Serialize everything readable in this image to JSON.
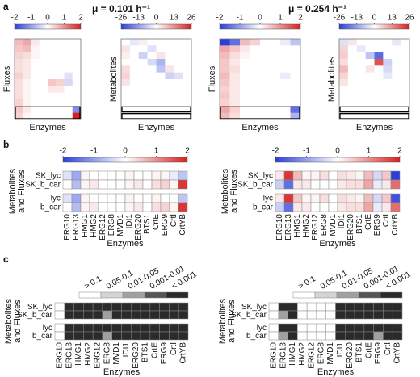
{
  "panel_labels": [
    "a",
    "b",
    "c"
  ],
  "titles": [
    "μ = 0.101 h⁻¹",
    "μ = 0.254 h⁻¹"
  ],
  "chart_data": [
    {
      "type": "heatmap",
      "ylabel": "Fluxes",
      "xlabel": "Enzymes",
      "clim": [
        -2,
        2
      ],
      "cticks": [
        -2,
        -1,
        0,
        1,
        2
      ],
      "cmap": [
        "#2b3fd8",
        "#ffffff",
        "#d62020"
      ],
      "values": [
        [
          0.6,
          0.8,
          0.2,
          0,
          0,
          0,
          0,
          0
        ],
        [
          0.5,
          0.6,
          0.1,
          0,
          0,
          0,
          0,
          0
        ],
        [
          0.4,
          0.3,
          0.1,
          0,
          0,
          0,
          0,
          0
        ],
        [
          0.3,
          0.2,
          0,
          0,
          0,
          0,
          0,
          0
        ],
        [
          0.3,
          0.2,
          0,
          0,
          0,
          0,
          0,
          0
        ],
        [
          0.4,
          0.2,
          0,
          0,
          0,
          0,
          -0.3,
          0
        ],
        [
          0.3,
          0.1,
          0,
          0,
          0.5,
          0.4,
          -0.4,
          0
        ],
        [
          0.3,
          0.1,
          0,
          0,
          0.2,
          0.2,
          0,
          0
        ],
        [
          0.3,
          0.1,
          0,
          0,
          0,
          0,
          0,
          0
        ],
        [
          0.4,
          0.1,
          0,
          0,
          0,
          0,
          0,
          0
        ],
        [
          0.5,
          0.2,
          0,
          0,
          0,
          0,
          0,
          -1.2
        ],
        [
          0.4,
          0.1,
          0,
          0,
          0,
          0,
          0,
          2
        ]
      ]
    },
    {
      "type": "heatmap",
      "ylabel": "Metabolites",
      "xlabel": "Enzymes",
      "clim": [
        -26,
        26
      ],
      "cticks": [
        -26,
        -13,
        0,
        13,
        26
      ],
      "cmap": [
        "#2b3fd8",
        "#ffffff",
        "#d62020"
      ],
      "values": [
        [
          0,
          -3,
          2,
          0,
          0,
          0,
          0,
          0
        ],
        [
          3,
          0,
          0,
          -4,
          0,
          0,
          0,
          0
        ],
        [
          2,
          0,
          -6,
          0,
          3,
          0,
          0,
          0
        ],
        [
          0,
          0,
          0,
          -5,
          -10,
          0,
          0,
          0
        ],
        [
          4,
          0,
          0,
          0,
          -8,
          3,
          0,
          0
        ],
        [
          5,
          0,
          0,
          0,
          0,
          -6,
          -4,
          0
        ],
        [
          3,
          0,
          0,
          0,
          0,
          0,
          0,
          0
        ],
        [
          0,
          0,
          0,
          0,
          0,
          0,
          0,
          0
        ],
        [
          0,
          0,
          0,
          0,
          0,
          0,
          0,
          0
        ],
        [
          0,
          0,
          0,
          0,
          0,
          0,
          0,
          0
        ],
        [
          0,
          0,
          0,
          0,
          0,
          0,
          0,
          0
        ],
        [
          0,
          0,
          0,
          0,
          0,
          0,
          0,
          0
        ]
      ]
    },
    {
      "type": "heatmap",
      "ylabel": "Fluxes",
      "xlabel": "Enzymes",
      "clim": [
        -2,
        2
      ],
      "cticks": [
        -2,
        -1,
        0,
        1,
        2
      ],
      "cmap": [
        "#2b3fd8",
        "#ffffff",
        "#d62020"
      ],
      "values": [
        [
          -2,
          -1.5,
          0.6,
          0.4,
          0,
          0,
          -0.2,
          -0.6
        ],
        [
          0.8,
          0.5,
          0.2,
          0,
          0,
          0,
          0,
          0
        ],
        [
          0.6,
          0.3,
          0.1,
          0,
          0,
          0,
          0,
          0
        ],
        [
          0.5,
          0.2,
          0,
          0,
          0,
          0,
          0,
          0
        ],
        [
          0.5,
          0.3,
          0,
          0,
          0,
          0,
          0,
          0
        ],
        [
          0.6,
          0.2,
          0,
          0,
          0,
          0,
          -0.2,
          0
        ],
        [
          0.5,
          0.2,
          0,
          0,
          0,
          0,
          0,
          0
        ],
        [
          0.4,
          0.2,
          0,
          0,
          0,
          0,
          0,
          0
        ],
        [
          0.5,
          0.2,
          0,
          0,
          0,
          0,
          0,
          0
        ],
        [
          0.4,
          0.2,
          0,
          0,
          0,
          0,
          0,
          0
        ],
        [
          0.8,
          0.4,
          0,
          0,
          0,
          0,
          0,
          -1.5
        ],
        [
          0.6,
          0.3,
          0,
          0,
          0,
          0,
          0,
          -0.8
        ]
      ]
    },
    {
      "type": "heatmap",
      "ylabel": "Metabolites",
      "xlabel": "Enzymes",
      "clim": [
        -26,
        26
      ],
      "cticks": [
        -26,
        -13,
        0,
        13,
        26
      ],
      "cmap": [
        "#2b3fd8",
        "#ffffff",
        "#d62020"
      ],
      "values": [
        [
          -4,
          3,
          0,
          0,
          0,
          0,
          -3,
          0
        ],
        [
          5,
          0,
          -3,
          0,
          0,
          0,
          0,
          0
        ],
        [
          6,
          0,
          0,
          -8,
          -20,
          0,
          0,
          0
        ],
        [
          4,
          0,
          0,
          0,
          20,
          -6,
          0,
          0
        ],
        [
          8,
          0,
          0,
          3,
          0,
          -5,
          0,
          0
        ],
        [
          5,
          0,
          0,
          0,
          0,
          -3,
          0,
          0
        ],
        [
          3,
          0,
          0,
          0,
          0,
          0,
          0,
          0
        ],
        [
          0,
          0,
          0,
          0,
          0,
          0,
          0,
          0
        ],
        [
          0,
          0,
          0,
          0,
          0,
          0,
          0,
          0
        ],
        [
          0,
          0,
          0,
          0,
          0,
          0,
          0,
          0
        ],
        [
          0,
          0,
          0,
          0,
          0,
          0,
          0,
          0
        ],
        [
          0,
          0,
          0,
          0,
          0,
          0,
          0,
          0
        ]
      ]
    },
    {
      "type": "heatmap",
      "ylabel": [
        "Metabolites",
        "and Fluxes"
      ],
      "xlabel": "Enzymes",
      "clim": [
        -2,
        2
      ],
      "cticks": [
        -2,
        -1,
        0,
        1,
        2
      ],
      "cmap": [
        "#2b3fd8",
        "#ffffff",
        "#d62020"
      ],
      "categories": [
        "ERG10",
        "ERG13",
        "HMG1",
        "HMG2",
        "ERG12",
        "ERG8",
        "MVD1",
        "IDI1",
        "ERG20",
        "BTS1",
        "CrtE",
        "ERG9",
        "CrtI",
        "CrtYB"
      ],
      "y_categories": [
        "SK_lyc",
        "SK_b_car",
        "lyc",
        "b_car"
      ],
      "values": [
        [
          -0.3,
          -0.9,
          0.1,
          0,
          0,
          0,
          0,
          0.1,
          0,
          0,
          0.1,
          0.1,
          -0.2,
          -0.6
        ],
        [
          0,
          -0.7,
          0.1,
          0.2,
          0,
          0,
          0,
          0.1,
          0.2,
          0,
          0.3,
          0.4,
          0.1,
          1.8
        ],
        [
          -0.3,
          -0.9,
          0.1,
          0,
          0,
          0,
          0,
          0.1,
          0,
          0,
          0.1,
          0,
          0,
          -0.6
        ],
        [
          0,
          -0.7,
          0.1,
          0.2,
          0,
          0,
          0,
          0.1,
          0.2,
          0,
          0.3,
          0.4,
          0.1,
          1.8
        ]
      ]
    },
    {
      "type": "heatmap",
      "ylabel": [
        "Metabolites",
        "and Fluxes"
      ],
      "xlabel": "Enzymes",
      "clim": [
        -2,
        2
      ],
      "cticks": [
        -2,
        -1,
        0,
        1,
        2
      ],
      "cmap": [
        "#2b3fd8",
        "#ffffff",
        "#d62020"
      ],
      "categories": [
        "ERG10",
        "ERG13",
        "HMG1",
        "HMG2",
        "ERG12",
        "ERG8",
        "MVD1",
        "IDI1",
        "ERG20",
        "BTS1",
        "CrtE",
        "ERG9",
        "CrtI",
        "CrtYB"
      ],
      "y_categories": [
        "SK_lyc",
        "SK_b_car",
        "lyc",
        "b_car"
      ],
      "values": [
        [
          0.2,
          1.8,
          0.6,
          0.1,
          0.1,
          0.3,
          0,
          0.3,
          0.2,
          0.1,
          0.6,
          -0.4,
          0.5,
          -2
        ],
        [
          -0.5,
          -1.5,
          0.2,
          0.2,
          0,
          0,
          0,
          0.2,
          0.3,
          0.3,
          0.8,
          -0.2,
          0.2,
          1.3
        ],
        [
          0.2,
          1.8,
          0.5,
          0.1,
          0.1,
          0.3,
          0,
          0.3,
          0.2,
          0.1,
          0.6,
          -0.4,
          0.5,
          -1.8
        ],
        [
          -0.5,
          -1.5,
          0.2,
          0.2,
          0,
          0,
          0,
          0.2,
          0.3,
          0.3,
          0.8,
          -0.2,
          0.2,
          1.3
        ]
      ]
    },
    {
      "type": "heatmap",
      "ylabel": [
        "Metabolites",
        "and Fluxes"
      ],
      "xlabel": "Enzymes",
      "levels": [
        "> 0.1",
        "0.05-0.1",
        "0.01-0.05",
        "0.001-0.01",
        "< 0.001"
      ],
      "level_colors": [
        "#ffffff",
        "#d4d4d4",
        "#a0a0a0",
        "#555555",
        "#2a2a2a"
      ],
      "categories": [
        "ERG10",
        "ERG13",
        "HMG1",
        "HMG2",
        "ERG12",
        "ERG8",
        "MVD1",
        "IDI1",
        "ERG20",
        "BTS1",
        "CrtE",
        "ERG9",
        "CrtI",
        "CrtYB"
      ],
      "y_categories": [
        "SK_lyc",
        "SK_b_car",
        "lyc",
        "b_car"
      ],
      "values": [
        [
          0,
          4,
          4,
          4,
          4,
          4,
          4,
          4,
          4,
          4,
          4,
          4,
          4,
          4
        ],
        [
          0,
          4,
          4,
          4,
          4,
          2,
          4,
          4,
          4,
          4,
          4,
          4,
          4,
          4
        ],
        [
          0,
          4,
          4,
          4,
          4,
          4,
          4,
          4,
          4,
          4,
          4,
          4,
          4,
          4
        ],
        [
          0,
          4,
          4,
          4,
          4,
          2,
          4,
          4,
          4,
          4,
          4,
          4,
          4,
          4
        ]
      ]
    },
    {
      "type": "heatmap",
      "ylabel": [
        "Metabolites",
        "and Fluxes"
      ],
      "xlabel": "Enzymes",
      "levels": [
        "> 0.1",
        "0.05-0.1",
        "0.01-0.05",
        "0.001-0.01",
        "< 0.001"
      ],
      "level_colors": [
        "#ffffff",
        "#d4d4d4",
        "#a0a0a0",
        "#555555",
        "#2a2a2a"
      ],
      "categories": [
        "ERG10",
        "ERG13",
        "HMG1",
        "HMG2",
        "ERG12",
        "ERG8",
        "MVD1",
        "IDI1",
        "ERG20",
        "BTS1",
        "CrtE",
        "ERG9",
        "CrtI",
        "CrtYB"
      ],
      "y_categories": [
        "SK_lyc",
        "SK_b_car",
        "lyc",
        "b_car"
      ],
      "values": [
        [
          0,
          4,
          4,
          0,
          0,
          0,
          0,
          4,
          4,
          4,
          4,
          4,
          4,
          4
        ],
        [
          0,
          2,
          4,
          0,
          0,
          0,
          0,
          4,
          4,
          4,
          4,
          4,
          4,
          4
        ],
        [
          0,
          4,
          4,
          0,
          0,
          0,
          0,
          4,
          4,
          4,
          4,
          4,
          4,
          4
        ],
        [
          0,
          2,
          4,
          0,
          0,
          0,
          0,
          4,
          4,
          4,
          4,
          2,
          4,
          4
        ]
      ]
    }
  ]
}
